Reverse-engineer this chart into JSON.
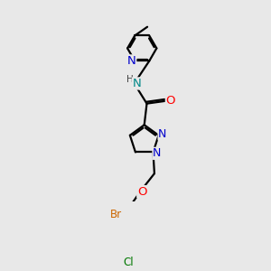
{
  "bg_color": "#e8e8e8",
  "bond_color": "#000000",
  "bond_width": 1.6,
  "atom_colors": {
    "N": "#0000cc",
    "O": "#ff0000",
    "Br": "#cc6600",
    "Cl": "#007700",
    "C": "#000000",
    "H": "#444444",
    "NH": "#008888"
  },
  "font_size": 8.5
}
